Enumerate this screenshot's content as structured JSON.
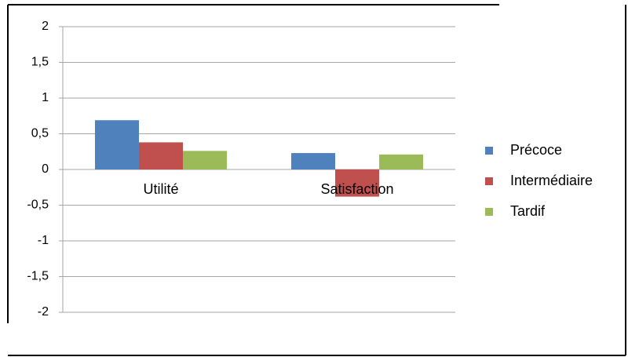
{
  "chart_data": {
    "type": "bar",
    "categories": [
      "Utilité",
      "Satisfaction"
    ],
    "series": [
      {
        "name": "Précoce",
        "color": "#4f81bd",
        "values": [
          0.69,
          0.23
        ]
      },
      {
        "name": "Intermédiaire",
        "color": "#c0504d",
        "values": [
          0.38,
          -0.38
        ]
      },
      {
        "name": "Tardif",
        "color": "#9bbb59",
        "values": [
          0.26,
          0.21
        ]
      }
    ],
    "ylim": [
      -2,
      2
    ],
    "yticks": [
      -2,
      {
        "value": -1.5,
        "label": "-1,5"
      },
      -1,
      {
        "value": -0.5,
        "label": "-0,5"
      },
      0,
      {
        "value": 0.5,
        "label": "0,5"
      },
      1,
      {
        "value": 1.5,
        "label": "1,5"
      },
      2
    ],
    "grid": true,
    "legend": "right"
  }
}
